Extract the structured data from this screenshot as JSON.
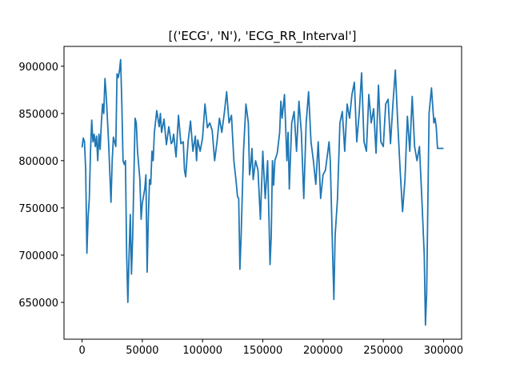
{
  "chart_data": {
    "type": "line",
    "title": "[('ECG', 'N'), 'ECG_RR_Interval']",
    "x": [
      0,
      1000,
      2000,
      3000,
      4000,
      5000,
      6000,
      7000,
      8000,
      9000,
      10000,
      11000,
      12000,
      13000,
      14000,
      15000,
      16000,
      17000,
      18000,
      19000,
      20000,
      22000,
      24000,
      25000,
      26000,
      28000,
      29000,
      30000,
      31000,
      32000,
      33000,
      34000,
      35000,
      36000,
      37000,
      38000,
      39000,
      40000,
      41000,
      42000,
      44000,
      45000,
      46000,
      48000,
      49000,
      50000,
      52000,
      53000,
      54000,
      55000,
      56000,
      57000,
      58000,
      59000,
      60000,
      62000,
      64000,
      65000,
      66000,
      68000,
      70000,
      72000,
      74000,
      75000,
      76000,
      78000,
      80000,
      82000,
      84000,
      85000,
      86000,
      88000,
      90000,
      92000,
      94000,
      95000,
      96000,
      98000,
      100000,
      102000,
      104000,
      106000,
      108000,
      110000,
      112000,
      114000,
      116000,
      118000,
      120000,
      122000,
      124000,
      126000,
      128000,
      129000,
      130000,
      131000,
      132000,
      134000,
      136000,
      138000,
      139000,
      140000,
      141000,
      142000,
      144000,
      146000,
      148000,
      150000,
      152000,
      154000,
      156000,
      157000,
      158000,
      159000,
      160000,
      162000,
      164000,
      165000,
      166000,
      168000,
      170000,
      171000,
      172000,
      174000,
      176000,
      178000,
      180000,
      182000,
      184000,
      186000,
      188000,
      190000,
      192000,
      194000,
      196000,
      198000,
      200000,
      202000,
      204000,
      205000,
      206000,
      208000,
      209000,
      210000,
      212000,
      214000,
      216000,
      218000,
      220000,
      222000,
      224000,
      226000,
      228000,
      230000,
      232000,
      234000,
      236000,
      238000,
      240000,
      242000,
      244000,
      246000,
      248000,
      250000,
      252000,
      254000,
      256000,
      258000,
      260000,
      262000,
      264000,
      266000,
      268000,
      270000,
      272000,
      274000,
      276000,
      278000,
      280000,
      282000,
      284000,
      285000,
      286000,
      288000,
      290000,
      292000,
      293000,
      294000,
      295000,
      300000
    ],
    "values": [
      814000,
      824000,
      820000,
      790000,
      702000,
      740000,
      760000,
      810000,
      843000,
      820000,
      828000,
      815000,
      826000,
      800000,
      828000,
      812000,
      840000,
      860000,
      850000,
      887000,
      870000,
      820000,
      756000,
      800000,
      825000,
      815000,
      892000,
      888000,
      895000,
      907000,
      860000,
      800000,
      796000,
      800000,
      700000,
      650000,
      700000,
      743000,
      680000,
      720000,
      845000,
      840000,
      810000,
      780000,
      738000,
      755000,
      770000,
      785000,
      682000,
      740000,
      780000,
      775000,
      810000,
      800000,
      830000,
      853000,
      836000,
      850000,
      830000,
      844000,
      817000,
      836000,
      818000,
      820000,
      828000,
      804000,
      848000,
      818000,
      820000,
      790000,
      783000,
      820000,
      842000,
      810000,
      826000,
      800000,
      822000,
      810000,
      824000,
      860000,
      835000,
      840000,
      832000,
      800000,
      820000,
      845000,
      830000,
      850000,
      873000,
      840000,
      848000,
      800000,
      776000,
      762000,
      760000,
      685000,
      720000,
      810000,
      860000,
      840000,
      785000,
      795000,
      813000,
      780000,
      800000,
      790000,
      738000,
      810000,
      760000,
      800000,
      690000,
      720000,
      800000,
      774000,
      800000,
      808000,
      830000,
      863000,
      845000,
      870000,
      800000,
      830000,
      770000,
      840000,
      852000,
      810000,
      863000,
      830000,
      760000,
      840000,
      873000,
      820000,
      800000,
      775000,
      820000,
      760000,
      785000,
      790000,
      810000,
      820000,
      800000,
      700000,
      653000,
      720000,
      760000,
      840000,
      852000,
      810000,
      860000,
      845000,
      870000,
      883000,
      820000,
      850000,
      893000,
      820000,
      810000,
      870000,
      840000,
      855000,
      808000,
      880000,
      820000,
      815000,
      860000,
      865000,
      818000,
      860000,
      896000,
      840000,
      790000,
      746000,
      780000,
      847000,
      810000,
      868000,
      815000,
      800000,
      815000,
      760000,
      700000,
      626000,
      660000,
      850000,
      877000,
      840000,
      845000,
      835000,
      813000,
      813000
    ],
    "color": "#1f77b4",
    "xlim": [
      -15000,
      315000
    ],
    "ylim": [
      611000,
      921000
    ],
    "xticks": [
      0,
      50000,
      100000,
      150000,
      200000,
      250000,
      300000
    ],
    "yticks": [
      650000,
      700000,
      750000,
      800000,
      850000,
      900000
    ]
  }
}
